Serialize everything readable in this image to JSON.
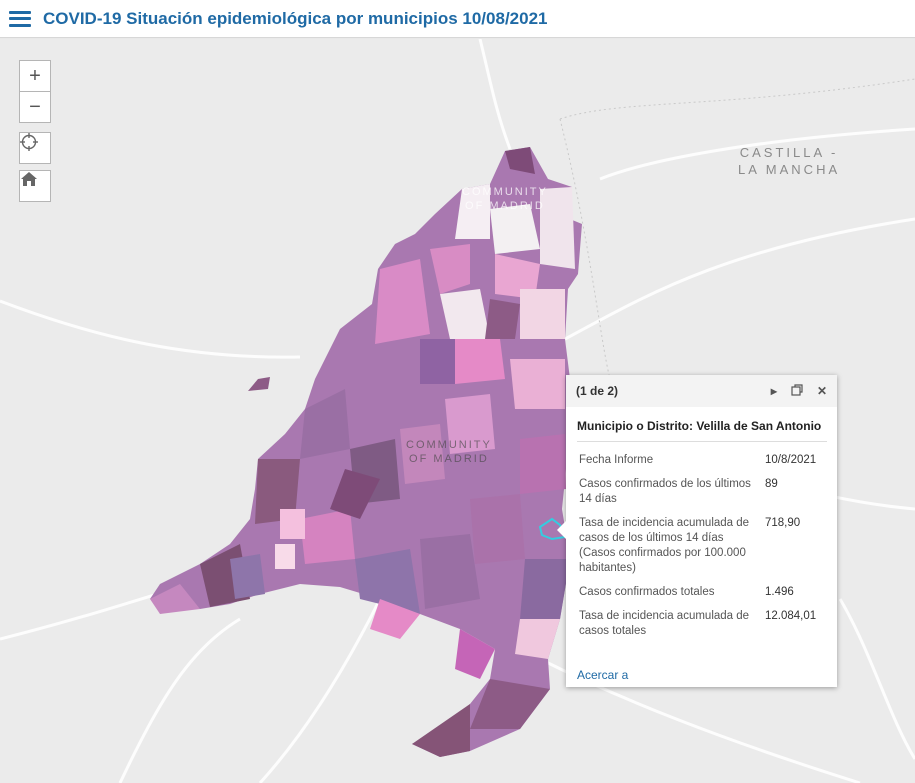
{
  "header": {
    "title": "COVID-19 Situación epidemiológica por municipios 10/08/2021"
  },
  "map": {
    "labels": {
      "castilla": [
        "CASTILLA -",
        "LA MANCHA"
      ],
      "madrid_north": [
        "COMMUNITY",
        "OF MADRID"
      ],
      "madrid_center": [
        "COMMUNITY",
        "OF MADRID"
      ]
    },
    "colors": {
      "background": "#ebebeb",
      "dark": "#8d5b86",
      "medium": "#a978b0",
      "light": "#d88cc4",
      "pale": "#f2dfea",
      "highlight": "#33cde0"
    }
  },
  "controls": {
    "zoom_in": "+",
    "zoom_out": "−",
    "locate_icon": "crosshair-icon",
    "home_icon": "home-icon"
  },
  "popup": {
    "pager": "(1 de 2)",
    "title": "Municipio o Distrito: Velilla de San Antonio",
    "fields": [
      {
        "label": "Fecha Informe",
        "value": "10/8/2021"
      },
      {
        "label": "Casos confirmados de los últimos 14 días",
        "value": "89"
      },
      {
        "label": "Tasa de incidencia acumulada de casos de los últimos 14 días (Casos confirmados por 100.000 habitantes)",
        "value": "718,90"
      },
      {
        "label": "Casos confirmados totales",
        "value": "1.496"
      },
      {
        "label": "Tasa de incidencia acumulada de casos totales",
        "value": "12.084,01"
      }
    ],
    "zoom_link": "Acercar a"
  }
}
